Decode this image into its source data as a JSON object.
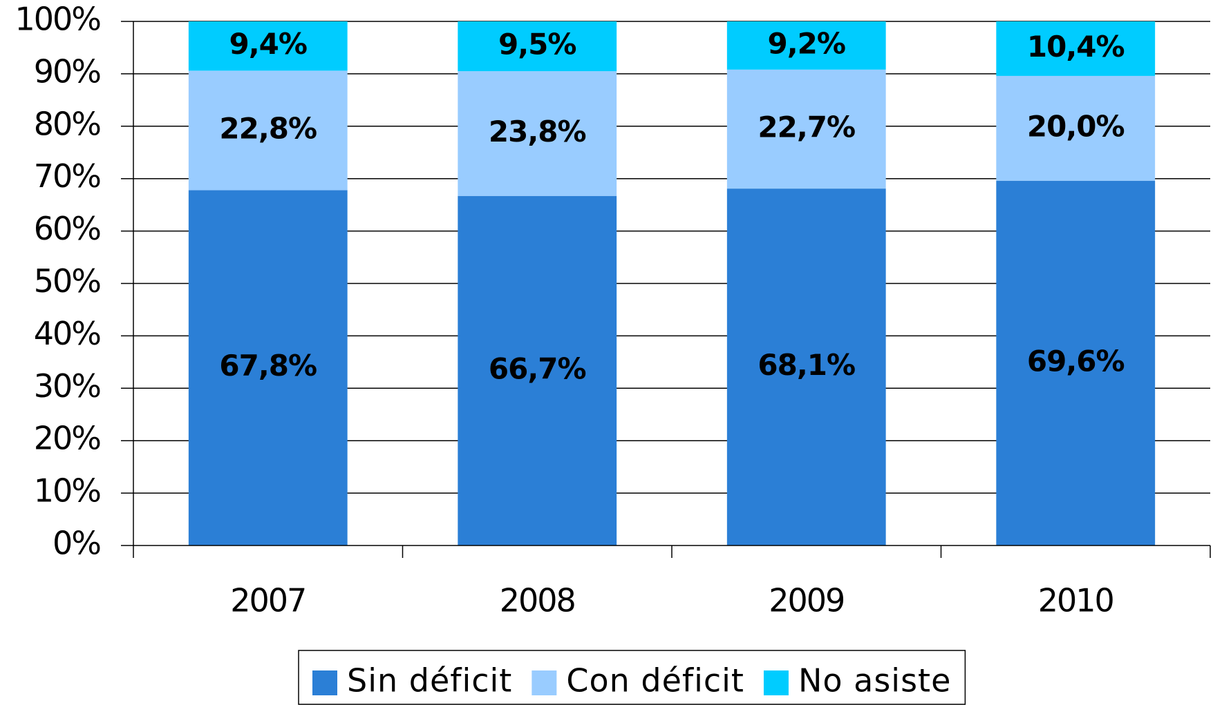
{
  "chart_data": {
    "type": "stacked_bar",
    "categories": [
      "2007",
      "2008",
      "2009",
      "2010"
    ],
    "series": [
      {
        "name": "Sin déficit",
        "color": "#2b7fd6",
        "values": [
          67.8,
          66.7,
          68.1,
          69.6
        ],
        "value_labels": [
          "67,8%",
          "66,7%",
          "68,1%",
          "69,6%"
        ]
      },
      {
        "name": "Con déficit",
        "color": "#99ccff",
        "values": [
          22.8,
          23.8,
          22.7,
          20.0
        ],
        "value_labels": [
          "22,8%",
          "23,8%",
          "22,7%",
          "20,0%"
        ]
      },
      {
        "name": "No asiste",
        "color": "#00ccff",
        "values": [
          9.4,
          9.5,
          9.2,
          10.4
        ],
        "value_labels": [
          "9,4%",
          "9,5%",
          "9,2%",
          "10,4%"
        ]
      }
    ],
    "ylim": [
      0,
      100
    ],
    "yticks": [
      {
        "value": 0,
        "label": "0%"
      },
      {
        "value": 10,
        "label": "10%"
      },
      {
        "value": 20,
        "label": "20%"
      },
      {
        "value": 30,
        "label": "30%"
      },
      {
        "value": 40,
        "label": "40%"
      },
      {
        "value": 50,
        "label": "50%"
      },
      {
        "value": 60,
        "label": "60%"
      },
      {
        "value": 70,
        "label": "70%"
      },
      {
        "value": 80,
        "label": "80%"
      },
      {
        "value": 90,
        "label": "90%"
      },
      {
        "value": 100,
        "label": "100%"
      }
    ],
    "grid": true,
    "legend": "bottom"
  }
}
